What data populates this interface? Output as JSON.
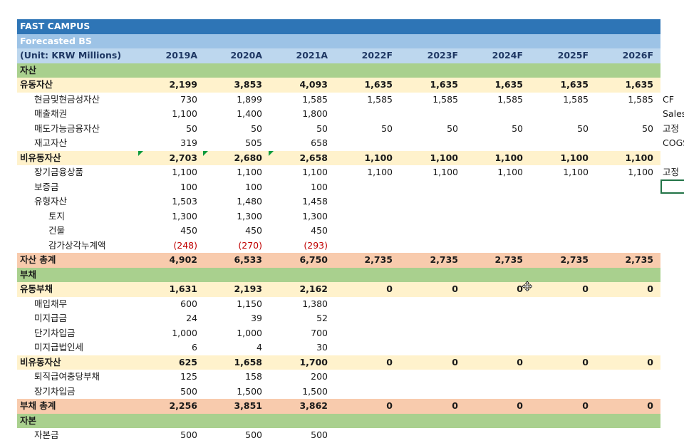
{
  "company": "FAST CAMPUS",
  "sheet_title": "Forecasted BS",
  "header": {
    "unit_label": "(Unit: KRW Millions)",
    "years": [
      "2019A",
      "2020A",
      "2021A",
      "2022F",
      "2023F",
      "2024F",
      "2025F",
      "2026F"
    ]
  },
  "rows": [
    {
      "label": "자산",
      "style": "green",
      "values": [
        "",
        "",
        "",
        "",
        "",
        "",
        "",
        ""
      ]
    },
    {
      "label": "유동자산",
      "style": "yellow",
      "values": [
        "2,199",
        "3,853",
        "4,093",
        "1,635",
        "1,635",
        "1,635",
        "1,635",
        "1,635"
      ]
    },
    {
      "label": "현금및현금성자산",
      "style": "ind1",
      "values": [
        "730",
        "1,899",
        "1,585",
        "1,585",
        "1,585",
        "1,585",
        "1,585",
        "1,585"
      ]
    },
    {
      "label": "매출채권",
      "style": "ind1",
      "values": [
        "1,100",
        "1,400",
        "1,800",
        "",
        "",
        "",
        "",
        ""
      ]
    },
    {
      "label": "매도가능금융자산",
      "style": "ind1",
      "values": [
        "50",
        "50",
        "50",
        "50",
        "50",
        "50",
        "50",
        "50"
      ]
    },
    {
      "label": "재고자산",
      "style": "ind1",
      "values": [
        "319",
        "505",
        "658",
        "",
        "",
        "",
        "",
        ""
      ]
    },
    {
      "label": "비유동자산",
      "style": "yellow",
      "values": [
        "2,703",
        "2,680",
        "2,658",
        "1,100",
        "1,100",
        "1,100",
        "1,100",
        "1,100"
      ]
    },
    {
      "label": "장기금융상품",
      "style": "ind1",
      "values": [
        "1,100",
        "1,100",
        "1,100",
        "1,100",
        "1,100",
        "1,100",
        "1,100",
        "1,100"
      ]
    },
    {
      "label": "보증금",
      "style": "ind1",
      "values": [
        "100",
        "100",
        "100",
        "",
        "",
        "",
        "",
        ""
      ]
    },
    {
      "label": "유형자산",
      "style": "ind1",
      "values": [
        "1,503",
        "1,480",
        "1,458",
        "",
        "",
        "",
        "",
        ""
      ]
    },
    {
      "label": "토지",
      "style": "ind2",
      "values": [
        "1,300",
        "1,300",
        "1,300",
        "",
        "",
        "",
        "",
        ""
      ]
    },
    {
      "label": "건물",
      "style": "ind2",
      "values": [
        "450",
        "450",
        "450",
        "",
        "",
        "",
        "",
        ""
      ]
    },
    {
      "label": "감가상각누계액",
      "style": "ind2",
      "values": [
        "(248)",
        "(270)",
        "(293)",
        "",
        "",
        "",
        "",
        ""
      ]
    },
    {
      "label": "자산 총계",
      "style": "orange",
      "values": [
        "4,902",
        "6,533",
        "6,750",
        "2,735",
        "2,735",
        "2,735",
        "2,735",
        "2,735"
      ]
    },
    {
      "label": "부채",
      "style": "green",
      "values": [
        "",
        "",
        "",
        "",
        "",
        "",
        "",
        ""
      ]
    },
    {
      "label": "유동부채",
      "style": "yellow",
      "values": [
        "1,631",
        "2,193",
        "2,162",
        "0",
        "0",
        "0",
        "0",
        "0"
      ]
    },
    {
      "label": "매입채무",
      "style": "ind1",
      "values": [
        "600",
        "1,150",
        "1,380",
        "",
        "",
        "",
        "",
        ""
      ]
    },
    {
      "label": "미지급금",
      "style": "ind1",
      "values": [
        "24",
        "39",
        "52",
        "",
        "",
        "",
        "",
        ""
      ]
    },
    {
      "label": "단기차입금",
      "style": "ind1",
      "values": [
        "1,000",
        "1,000",
        "700",
        "",
        "",
        "",
        "",
        ""
      ]
    },
    {
      "label": "미지급법인세",
      "style": "ind1",
      "values": [
        "6",
        "4",
        "30",
        "",
        "",
        "",
        "",
        ""
      ]
    },
    {
      "label": "비유동자산",
      "style": "yellow",
      "values": [
        "625",
        "1,658",
        "1,700",
        "0",
        "0",
        "0",
        "0",
        "0"
      ]
    },
    {
      "label": "퇴직급여충당부채",
      "style": "ind1",
      "values": [
        "125",
        "158",
        "200",
        "",
        "",
        "",
        "",
        ""
      ]
    },
    {
      "label": "장기차입금",
      "style": "ind1",
      "values": [
        "500",
        "1,500",
        "1,500",
        "",
        "",
        "",
        "",
        ""
      ]
    },
    {
      "label": "부채 총계",
      "style": "orange",
      "values": [
        "2,256",
        "3,851",
        "3,862",
        "0",
        "0",
        "0",
        "0",
        "0"
      ]
    },
    {
      "label": "자본",
      "style": "green",
      "values": [
        "",
        "",
        "",
        "",
        "",
        "",
        "",
        ""
      ]
    },
    {
      "label": "자본금",
      "style": "ind1",
      "values": [
        "500",
        "500",
        "500",
        "",
        "",
        "",
        "",
        ""
      ]
    }
  ],
  "side_notes": {
    "cash": "CF",
    "receivables": "Sales",
    "afs": "고정",
    "inventory": "COGS",
    "lt_financial": "고정"
  },
  "colors": {
    "title_bg": "#2e75b6",
    "subtitle_bg": "#9dc3e6",
    "header_bg": "#bdd7ee",
    "section_green": "#a9d08e",
    "subtotal_yellow": "#fff2cc",
    "total_orange": "#f8cbad",
    "negative_red": "#c00000",
    "comment_marker_green": "#0e9a3c"
  }
}
